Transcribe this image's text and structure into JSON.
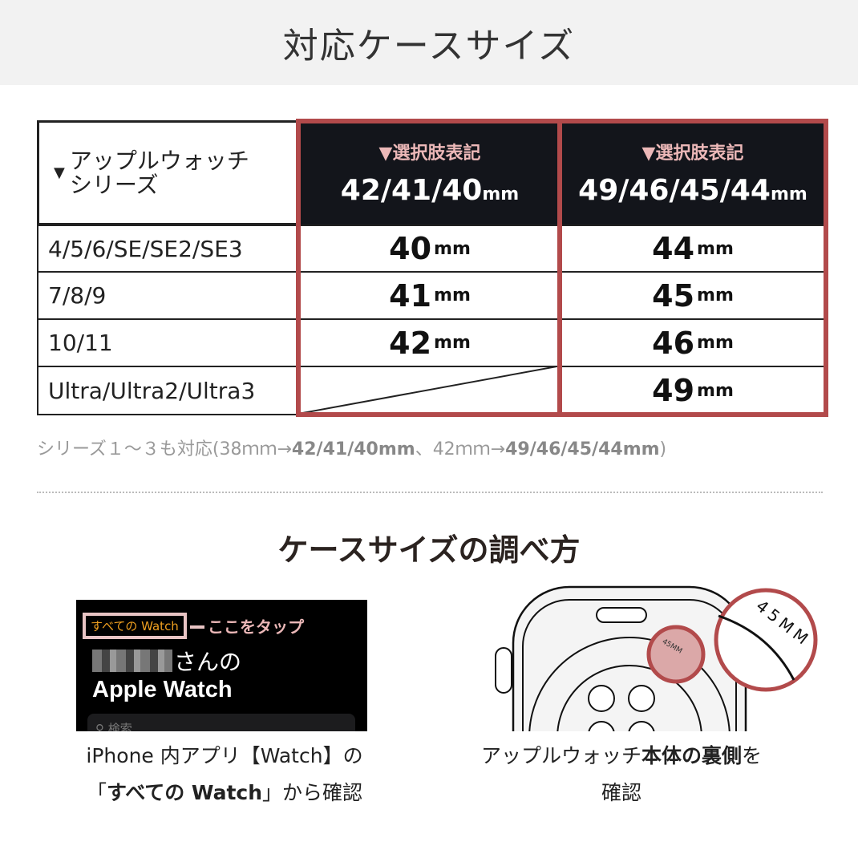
{
  "title": "対応ケースサイズ",
  "table": {
    "corner": [
      "アップルウォッチ",
      "シリーズ"
    ],
    "columns": [
      {
        "sub": "▼選択肢表記",
        "size": "42/41/40",
        "unit": "mm"
      },
      {
        "sub": "▼選択肢表記",
        "size": "49/46/45/44",
        "unit": "mm"
      }
    ],
    "rows": [
      {
        "series": "4/5/6/SE/SE2/SE3",
        "a": "40",
        "b": "44"
      },
      {
        "series": "7/8/9",
        "a": "41",
        "b": "45"
      },
      {
        "series": "10/11",
        "a": "42",
        "b": "46"
      },
      {
        "series": "Ultra/Ultra2/Ultra3",
        "a": "",
        "b": "49"
      }
    ],
    "unit": "mm"
  },
  "note": {
    "pre": "シリーズ１〜３も対応(38ｍｍ→",
    "b1": "42/41/40mm",
    "mid": "、42ｍｍ→",
    "b2": "49/46/45/44mm",
    "post": ")"
  },
  "howto_title": "ケースサイズの調べ方",
  "phone": {
    "tab": "すべての Watch",
    "tap": "ここをタップ",
    "name_suffix": "さんの",
    "app": "Apple Watch",
    "search": "検索"
  },
  "watch": {
    "engraving": "45MM",
    "zoom": "45MM"
  },
  "caption_left": {
    "l1": "iPhone 内アプリ【Watch】の",
    "l2a": "「",
    "l2b": "すべての Watch",
    "l2c": "」から確認"
  },
  "caption_right": {
    "l1a": "アップルウォッチ",
    "l1b": "本体の裏側",
    "l1c": "を",
    "l2": "確認"
  },
  "colors": {
    "accent": "#b24a4b",
    "header": "#13151b",
    "pink": "#ecb8b8"
  }
}
